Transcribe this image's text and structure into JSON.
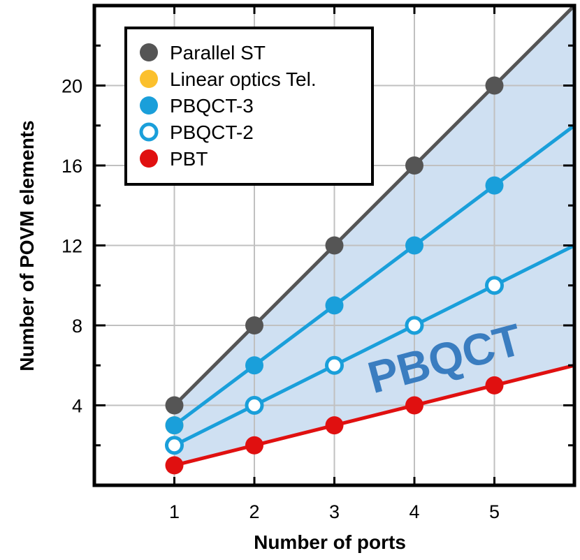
{
  "chart_data": {
    "type": "line",
    "xlabel": "Number of ports",
    "ylabel": "Number of POVM elements",
    "xlim": [
      0,
      6
    ],
    "ylim": [
      0,
      24
    ],
    "x_ticks": [
      1,
      2,
      3,
      4,
      5
    ],
    "y_ticks": [
      4,
      8,
      12,
      16,
      20
    ],
    "y_minor_ticks": [
      2,
      6,
      10,
      14,
      18,
      22
    ],
    "grid": true,
    "legend_position": "top-left",
    "region": {
      "label": "PBQCT",
      "lower_series": "PBT",
      "upper_series": "Parallel ST",
      "fill_color": "#cfe0f2",
      "label_color": "#3a7dc0"
    },
    "series": [
      {
        "name": "Parallel ST",
        "color": "#555555",
        "marker": "filled",
        "line": true,
        "x": [
          1,
          2,
          3,
          4,
          5
        ],
        "y": [
          4,
          8,
          12,
          16,
          20
        ],
        "slope": 4
      },
      {
        "name": "Linear optics Tel.",
        "color": "#fbc02d",
        "marker": "filled",
        "line": false,
        "x": [
          1,
          1
        ],
        "y": [
          2,
          3
        ]
      },
      {
        "name": "PBQCT-3",
        "color": "#1a9fda",
        "marker": "filled",
        "line": true,
        "x": [
          1,
          2,
          3,
          4,
          5
        ],
        "y": [
          3,
          6,
          9,
          12,
          15
        ],
        "slope": 3
      },
      {
        "name": "PBQCT-2",
        "color": "#1a9fda",
        "marker": "open",
        "line": true,
        "x": [
          1,
          2,
          3,
          4,
          5
        ],
        "y": [
          2,
          4,
          6,
          8,
          10
        ],
        "slope": 2
      },
      {
        "name": "PBT",
        "color": "#e01010",
        "marker": "filled",
        "line": true,
        "x": [
          1,
          2,
          3,
          4,
          5
        ],
        "y": [
          1,
          2,
          3,
          4,
          5
        ],
        "slope": 1
      }
    ]
  }
}
